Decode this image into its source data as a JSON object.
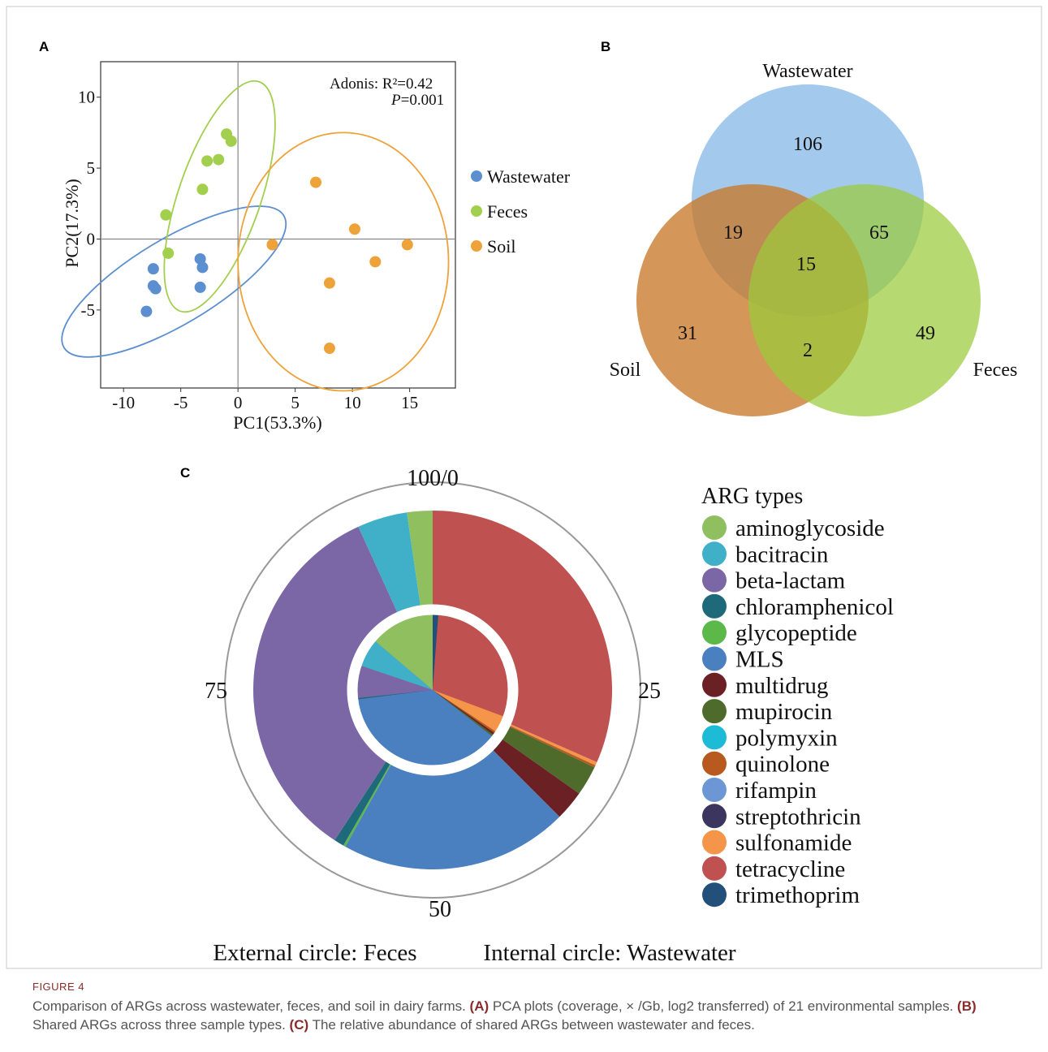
{
  "figure": {
    "label": "FIGURE 4",
    "caption_parts": [
      {
        "text": "Comparison of ARGs across wastewater, feces, and soil in dairy farms. ",
        "bold": false
      },
      {
        "text": "(A)",
        "bold": true
      },
      {
        "text": " PCA plots (coverage, × /Gb, log2 transferred) of 21 environmental samples. ",
        "bold": false
      },
      {
        "text": "(B)",
        "bold": true
      },
      {
        "text": " Shared ARGs across three sample types. ",
        "bold": false
      },
      {
        "text": "(C)",
        "bold": true
      },
      {
        "text": " The relative abundance of shared ARGs between wastewater and feces.",
        "bold": false
      }
    ]
  },
  "chart_data": [
    {
      "panel": "A",
      "type": "scatter",
      "xlabel": "PC1(53.3%)",
      "ylabel": "PC2(17.3%)",
      "xlim": [
        -12,
        19
      ],
      "ylim": [
        -10.5,
        12.5
      ],
      "xticks": [
        -10,
        -5,
        0,
        5,
        10,
        15
      ],
      "yticks": [
        -5,
        0,
        5,
        10
      ],
      "annotation": {
        "line1": "Adonis: R²=0.42",
        "line2_italic": "P",
        "line2_rest": "=0.001"
      },
      "legend_position": "right",
      "series": [
        {
          "name": "Wastewater",
          "color": "#5b8fcf",
          "points": [
            [
              -7.4,
              -2.1
            ],
            [
              -7.4,
              -3.3
            ],
            [
              -7.2,
              -3.5
            ],
            [
              -8.0,
              -5.1
            ],
            [
              -3.3,
              -1.4
            ],
            [
              -3.1,
              -2.0
            ],
            [
              -3.3,
              -3.4
            ]
          ],
          "ellipse": {
            "cx": -5.6,
            "cy": -3.0,
            "rx": 11.2,
            "ry": 3.0,
            "angle": 31
          }
        },
        {
          "name": "Feces",
          "color": "#a3cf4e",
          "points": [
            [
              -6.3,
              1.7
            ],
            [
              -6.1,
              -1.0
            ],
            [
              -3.1,
              3.5
            ],
            [
              -2.7,
              5.5
            ],
            [
              -1.7,
              5.6
            ],
            [
              -1.0,
              7.4
            ],
            [
              -0.6,
              6.9
            ]
          ],
          "ellipse": {
            "cx": -1.6,
            "cy": 3.0,
            "rx": 10.6,
            "ry": 2.9,
            "angle": 71
          }
        },
        {
          "name": "Soil",
          "color": "#eda23a",
          "points": [
            [
              3.0,
              -0.4
            ],
            [
              6.8,
              4.0
            ],
            [
              8.0,
              -3.1
            ],
            [
              8.0,
              -7.7
            ],
            [
              10.2,
              0.7
            ],
            [
              12.0,
              -1.6
            ],
            [
              14.8,
              -0.4
            ]
          ],
          "ellipse": {
            "cx": 9.2,
            "cy": -1.6,
            "rx": 9.2,
            "ry": 9.1,
            "angle": 0
          }
        }
      ]
    },
    {
      "panel": "B",
      "type": "venn",
      "sets": [
        {
          "name": "Wastewater",
          "color": "#6aa8e0"
        },
        {
          "name": "Soil",
          "color": "#c8782a"
        },
        {
          "name": "Feces",
          "color": "#9bcb3a"
        }
      ],
      "regions": [
        {
          "sets": [
            "Wastewater"
          ],
          "value": 106
        },
        {
          "sets": [
            "Feces"
          ],
          "value": 49
        },
        {
          "sets": [
            "Soil"
          ],
          "value": 31
        },
        {
          "sets": [
            "Wastewater",
            "Soil"
          ],
          "value": 19
        },
        {
          "sets": [
            "Wastewater",
            "Feces"
          ],
          "value": 65
        },
        {
          "sets": [
            "Soil",
            "Feces"
          ],
          "value": 2
        },
        {
          "sets": [
            "Wastewater",
            "Soil",
            "Feces"
          ],
          "value": 15
        }
      ]
    },
    {
      "panel": "C",
      "type": "pie",
      "subtype": "nested-donut",
      "ring_labels": {
        "top": "100/0",
        "right": "25",
        "bottom": "50",
        "left": "75"
      },
      "legend_title": "ARG types",
      "legend_position": "right",
      "categories": [
        "aminoglycoside",
        "bacitracin",
        "beta-lactam",
        "chloramphenicol",
        "glycopeptide",
        "MLS",
        "multidrug",
        "mupirocin",
        "polymyxin",
        "quinolone",
        "rifampin",
        "streptothricin",
        "sulfonamide",
        "tetracycline",
        "trimethoprim"
      ],
      "colors": [
        "#8fbf5e",
        "#3fb0c8",
        "#7b66a6",
        "#1f6a7a",
        "#5db84a",
        "#4a80c0",
        "#6b2024",
        "#4f6b2c",
        "#1dbbd6",
        "#b85a20",
        "#6c96d4",
        "#3b3560",
        "#f5954a",
        "#bf5150",
        "#22507a"
      ],
      "series": [
        {
          "name": "Feces",
          "ring": "external",
          "values": {
            "tetracycline": 31.6,
            "sulfonamide": 0.3,
            "quinolone": 0.2,
            "mupirocin": 2.7,
            "multidrug": 2.7,
            "MLS": 20.6,
            "glycopeptide": 0.2,
            "chloramphenicol": 0.9,
            "beta-lactam": 34.0,
            "bacitracin": 4.5,
            "aminoglycoside": 2.3
          }
        },
        {
          "name": "Wastewater",
          "ring": "internal",
          "values": {
            "trimethoprim": 1.2,
            "tetracycline": 29.5,
            "sulfonamide": 3.6,
            "quinolone": 0.4,
            "multidrug": 0.4,
            "mupirocin": 0.4,
            "MLS": 37.5,
            "chloramphenicol": 0.3,
            "beta-lactam": 6.9,
            "bacitracin": 6.0,
            "aminoglycoside": 13.8
          }
        }
      ],
      "footer": {
        "external": "External circle: Feces",
        "internal": "Internal circle: Wastewater"
      }
    }
  ]
}
